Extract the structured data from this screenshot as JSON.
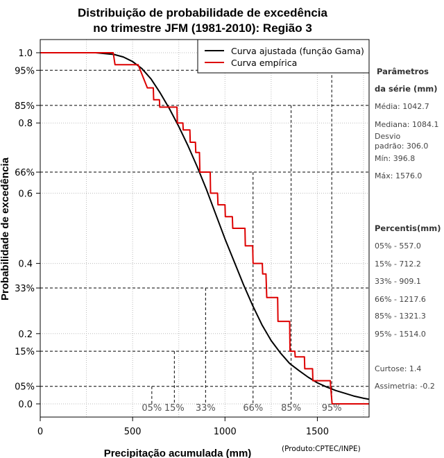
{
  "chart_data": {
    "type": "line",
    "title_line1": "Distribuição de probabilidade de excedência",
    "title_line2": "no trimestre JFM (1981-2010): Região 3",
    "xlabel": "Precipitação acumulada (mm)",
    "ylabel": "Probabilidade de excedência",
    "credit": "(Produto:CPTEC/INPE)",
    "xlim": [
      0,
      1780
    ],
    "ylim": [
      0,
      1
    ],
    "x_ticks": [
      0,
      500,
      1000,
      1500
    ],
    "x_tick_labels": [
      "0",
      "500",
      "1000",
      "1500"
    ],
    "y_ticks": [
      0.0,
      0.2,
      0.4,
      0.6,
      0.8,
      1.0
    ],
    "y_tick_labels": [
      "0.0",
      "0.2",
      "0.4",
      "0.6",
      "0.8",
      "1.0"
    ],
    "y_pct_ticks": [
      0.05,
      0.15,
      0.33,
      0.66,
      0.85,
      0.95
    ],
    "y_pct_labels": [
      "05%",
      "15%",
      "33%",
      "66%",
      "85%",
      "95%"
    ],
    "legend": [
      {
        "label": "Curva ajustada (função Gama)",
        "color": "#000000"
      },
      {
        "label": "Curva empírica",
        "color": "#dd0000"
      }
    ],
    "series": [
      {
        "name": "Curva ajustada (função Gama)",
        "color": "#000000",
        "x": [
          0,
          300,
          400,
          450,
          500,
          550,
          600,
          650,
          700,
          750,
          800,
          850,
          900,
          950,
          1000,
          1050,
          1100,
          1150,
          1200,
          1250,
          1300,
          1350,
          1400,
          1450,
          1500,
          1550,
          1600,
          1650,
          1700,
          1750,
          1780
        ],
        "y": [
          1.0,
          1.0,
          0.995,
          0.988,
          0.975,
          0.955,
          0.925,
          0.885,
          0.84,
          0.79,
          0.735,
          0.675,
          0.61,
          0.54,
          0.47,
          0.405,
          0.34,
          0.28,
          0.225,
          0.18,
          0.145,
          0.115,
          0.095,
          0.076,
          0.06,
          0.048,
          0.038,
          0.03,
          0.022,
          0.016,
          0.013
        ]
      },
      {
        "name": "Curva empírica",
        "color": "#dd0000",
        "x": [
          0,
          395,
          405,
          530,
          580,
          582,
          612,
          614,
          645,
          647,
          712,
          714,
          740,
          742,
          772,
          774,
          810,
          812,
          840,
          842,
          862,
          864,
          920,
          922,
          960,
          962,
          1000,
          1002,
          1040,
          1042,
          1108,
          1110,
          1150,
          1152,
          1202,
          1204,
          1222,
          1226,
          1285,
          1287,
          1350,
          1352,
          1378,
          1380,
          1430,
          1432,
          1474,
          1476,
          1570,
          1572,
          1580,
          1780
        ],
        "y": [
          1.0,
          1.0,
          0.966,
          0.966,
          0.9,
          0.9,
          0.9,
          0.866,
          0.866,
          0.845,
          0.845,
          0.845,
          0.845,
          0.8,
          0.8,
          0.78,
          0.78,
          0.745,
          0.745,
          0.716,
          0.716,
          0.66,
          0.66,
          0.6,
          0.6,
          0.567,
          0.567,
          0.533,
          0.533,
          0.5,
          0.5,
          0.45,
          0.45,
          0.4,
          0.4,
          0.37,
          0.37,
          0.303,
          0.303,
          0.235,
          0.235,
          0.15,
          0.15,
          0.134,
          0.134,
          0.1,
          0.1,
          0.066,
          0.066,
          0.05,
          0.0,
          0.0
        ]
      }
    ],
    "percentile_markers": [
      {
        "label": "05%",
        "x": 604,
        "p": 0.05
      },
      {
        "label": "15%",
        "x": 726,
        "p": 0.15
      },
      {
        "label": "33%",
        "x": 895,
        "p": 0.33
      },
      {
        "label": "66%",
        "x": 1152,
        "p": 0.66
      },
      {
        "label": "85%",
        "x": 1358,
        "p": 0.85
      },
      {
        "label": "95%",
        "x": 1578,
        "p": 0.95
      }
    ]
  },
  "sidebar": {
    "params_title_line1": "Parâmetros",
    "params_title_line2": "da série (mm)",
    "media": "Média: 1042.7",
    "mediana": "Mediana: 1084.1",
    "desvio_line1": "Desvio",
    "desvio_line2": "padrão: 306.0",
    "min": "Mín: 396.8",
    "max": "Máx: 1576.0",
    "percentis_title": "Percentis(mm)",
    "percentis": [
      "05% - 557.0",
      "15% - 712.2",
      "33% - 909.1",
      "66% - 1217.6",
      "85% - 1321.3",
      "95% - 1514.0"
    ],
    "curtose": "Curtose: 1.4",
    "assimetria": "Assimetria: -0.2"
  }
}
